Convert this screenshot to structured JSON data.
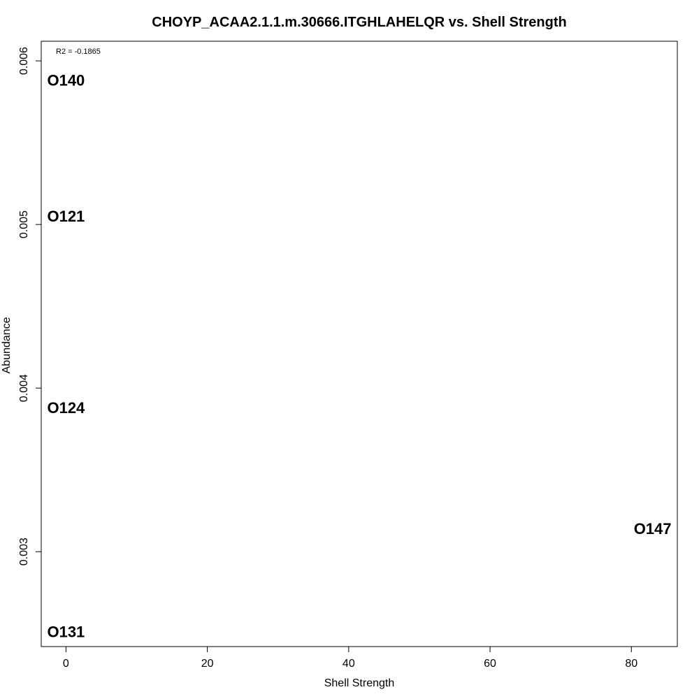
{
  "chart_data": {
    "type": "scatter",
    "title": "CHOYP_ACAA2.1.1.m.30666.ITGHLAHELQR vs. Shell Strength",
    "xlabel": "Shell Strength",
    "ylabel": "Abundance",
    "xlim": [
      -3.5,
      86.5
    ],
    "ylim": [
      0.00242,
      0.00612
    ],
    "xticks": [
      0,
      20,
      40,
      60,
      80
    ],
    "xtick_labels": [
      "0",
      "20",
      "40",
      "60",
      "80"
    ],
    "yticks": [
      0.003,
      0.004,
      0.005,
      0.006
    ],
    "ytick_labels": [
      "0.003",
      "0.004",
      "0.005",
      "0.006"
    ],
    "annotation": "R2 = -0.1865",
    "grid": false,
    "points": [
      {
        "label": "O140",
        "x": 0,
        "y": 0.00588
      },
      {
        "label": "O121",
        "x": 0,
        "y": 0.00505
      },
      {
        "label": "O124",
        "x": 0,
        "y": 0.00388
      },
      {
        "label": "O147",
        "x": 83,
        "y": 0.00314
      },
      {
        "label": "O131",
        "x": 0,
        "y": 0.00251
      }
    ]
  }
}
